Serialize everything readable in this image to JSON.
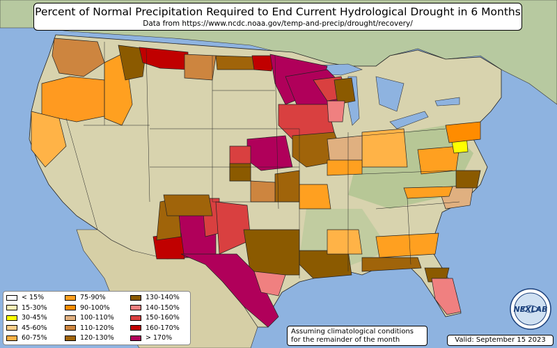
{
  "header": {
    "title": "Percent of Normal Precipitation Required to End Current Hydrological Drought in 6 Months",
    "subtitle": "Data from https://www.ncdc.noaa.gov/temp-and-precip/drought/recovery/"
  },
  "legend": {
    "items": [
      {
        "label": "< 15%",
        "color": "#ffffff"
      },
      {
        "label": "15-30%",
        "color": "#fff5b8"
      },
      {
        "label": "30-45%",
        "color": "#ffff00"
      },
      {
        "label": "45-60%",
        "color": "#ffd08a"
      },
      {
        "label": "60-75%",
        "color": "#ffb347"
      },
      {
        "label": "75-90%",
        "color": "#ffa020"
      },
      {
        "label": "90-100%",
        "color": "#ff8c00"
      },
      {
        "label": "100-110%",
        "color": "#e0b080"
      },
      {
        "label": "110-120%",
        "color": "#cd853f"
      },
      {
        "label": "120-130%",
        "color": "#a0640a"
      },
      {
        "label": "130-140%",
        "color": "#8b5a00"
      },
      {
        "label": "140-150%",
        "color": "#f08080"
      },
      {
        "label": "150-160%",
        "color": "#d94040"
      },
      {
        "label": "160-170%",
        "color": "#c00000"
      },
      {
        "label": "> 170%",
        "color": "#b0005a"
      }
    ]
  },
  "note": {
    "line1": "Assuming climatological conditions",
    "line2": "for the remainder of the month"
  },
  "valid": "Valid: September 15 2023",
  "logo": {
    "text": "NEXLAB"
  },
  "colors": {
    "ocean": "#8eb3e0",
    "land": "#d9d7b8",
    "green": "#a8c48a"
  }
}
